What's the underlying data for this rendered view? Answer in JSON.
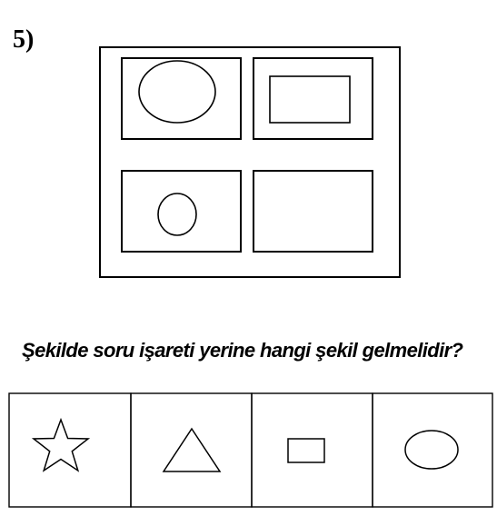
{
  "question_number": "5)",
  "puzzle": {
    "cells": [
      {
        "position": "top-left",
        "inner_shape": "ellipse"
      },
      {
        "position": "top-right",
        "inner_shape": "rectangle"
      },
      {
        "position": "bottom-left",
        "inner_shape": "circle"
      },
      {
        "position": "bottom-right",
        "inner_shape": "empty"
      }
    ]
  },
  "question_text": "Şekilde soru işareti yerine hangi şekil gelmelidir?",
  "options": [
    {
      "shape": "star-icon"
    },
    {
      "shape": "triangle-icon"
    },
    {
      "shape": "rectangle-icon"
    },
    {
      "shape": "ellipse-icon"
    }
  ],
  "colors": {
    "stroke": "#000000",
    "background": "#ffffff"
  }
}
